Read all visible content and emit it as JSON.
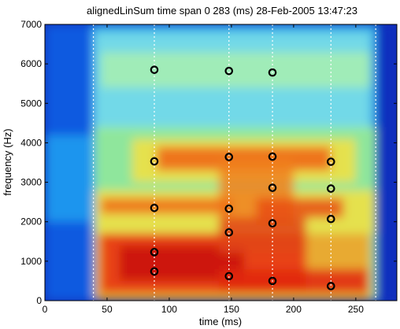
{
  "chart_data": {
    "type": "heatmap",
    "title": "alignedLinSum time span 0 283 (ms) 28-Feb-2005 13:47:23",
    "xlabel": "time (ms)",
    "ylabel": "frequency (Hz)",
    "xlim": [
      0,
      283
    ],
    "ylim": [
      0,
      7000
    ],
    "xticks": [
      0,
      50,
      100,
      150,
      200,
      250
    ],
    "yticks": [
      0,
      1000,
      2000,
      3000,
      4000,
      5000,
      6000,
      7000
    ],
    "colormap": "jet",
    "vertical_markers_ms": [
      39,
      88,
      148,
      183,
      230,
      266
    ],
    "markers": [
      {
        "x": 88,
        "y": 5850
      },
      {
        "x": 148,
        "y": 5820
      },
      {
        "x": 183,
        "y": 5780
      },
      {
        "x": 88,
        "y": 3530
      },
      {
        "x": 148,
        "y": 3640
      },
      {
        "x": 183,
        "y": 3650
      },
      {
        "x": 230,
        "y": 3520
      },
      {
        "x": 183,
        "y": 2860
      },
      {
        "x": 230,
        "y": 2840
      },
      {
        "x": 88,
        "y": 2350
      },
      {
        "x": 148,
        "y": 2330
      },
      {
        "x": 230,
        "y": 2070
      },
      {
        "x": 148,
        "y": 1730
      },
      {
        "x": 183,
        "y": 1960
      },
      {
        "x": 88,
        "y": 1230
      },
      {
        "x": 88,
        "y": 740
      },
      {
        "x": 148,
        "y": 620
      },
      {
        "x": 183,
        "y": 500
      },
      {
        "x": 230,
        "y": 370
      }
    ]
  }
}
